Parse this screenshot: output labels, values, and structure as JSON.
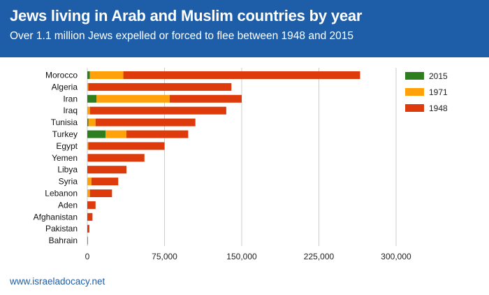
{
  "header": {
    "title": "Jews living in Arab and Muslim countries by year",
    "subtitle": "Over 1.1 million Jews expelled or forced to flee between 1948 and 2015"
  },
  "footer": {
    "text": "www.israeladocacy.net"
  },
  "colors": {
    "header_bg": "#1e5ea8",
    "s2015": "#2e7d1f",
    "s1971": "#ffa10a",
    "s1948": "#dd3b0b",
    "grid": "#cccccc"
  },
  "chart_data": {
    "type": "bar",
    "orientation": "horizontal",
    "stacked": true,
    "categories": [
      "Morocco",
      "Algeria",
      "Iran",
      "Iraq",
      "Tunisia",
      "Turkey",
      "Egypt",
      "Yemen",
      "Libya",
      "Syria",
      "Lebanon",
      "Aden",
      "Afghanistan",
      "Pakistan",
      "Bahrain"
    ],
    "series": [
      {
        "name": "2015",
        "color": "#2e7d1f",
        "values": [
          2500,
          0,
          9000,
          0,
          1000,
          17800,
          0,
          0,
          0,
          0,
          0,
          0,
          0,
          0,
          0
        ]
      },
      {
        "name": "1971",
        "color": "#ffa10a",
        "values": [
          32500,
          1000,
          71000,
          2500,
          7000,
          20200,
          1000,
          500,
          0,
          4000,
          2500,
          0,
          0,
          0,
          0
        ]
      },
      {
        "name": "1948",
        "color": "#dd3b0b",
        "values": [
          230000,
          139000,
          70000,
          132500,
          97000,
          60000,
          74000,
          55000,
          38000,
          26000,
          21500,
          8000,
          5000,
          2000,
          550
        ]
      }
    ],
    "xlim": [
      0,
      300000
    ],
    "xticks": [
      0,
      75000,
      150000,
      225000,
      300000
    ],
    "xtick_labels": [
      "0",
      "75,000",
      "150,000",
      "225,000",
      "300,000"
    ],
    "grid": true,
    "legend_position": "right",
    "legend": [
      "2015",
      "1971",
      "1948"
    ]
  }
}
